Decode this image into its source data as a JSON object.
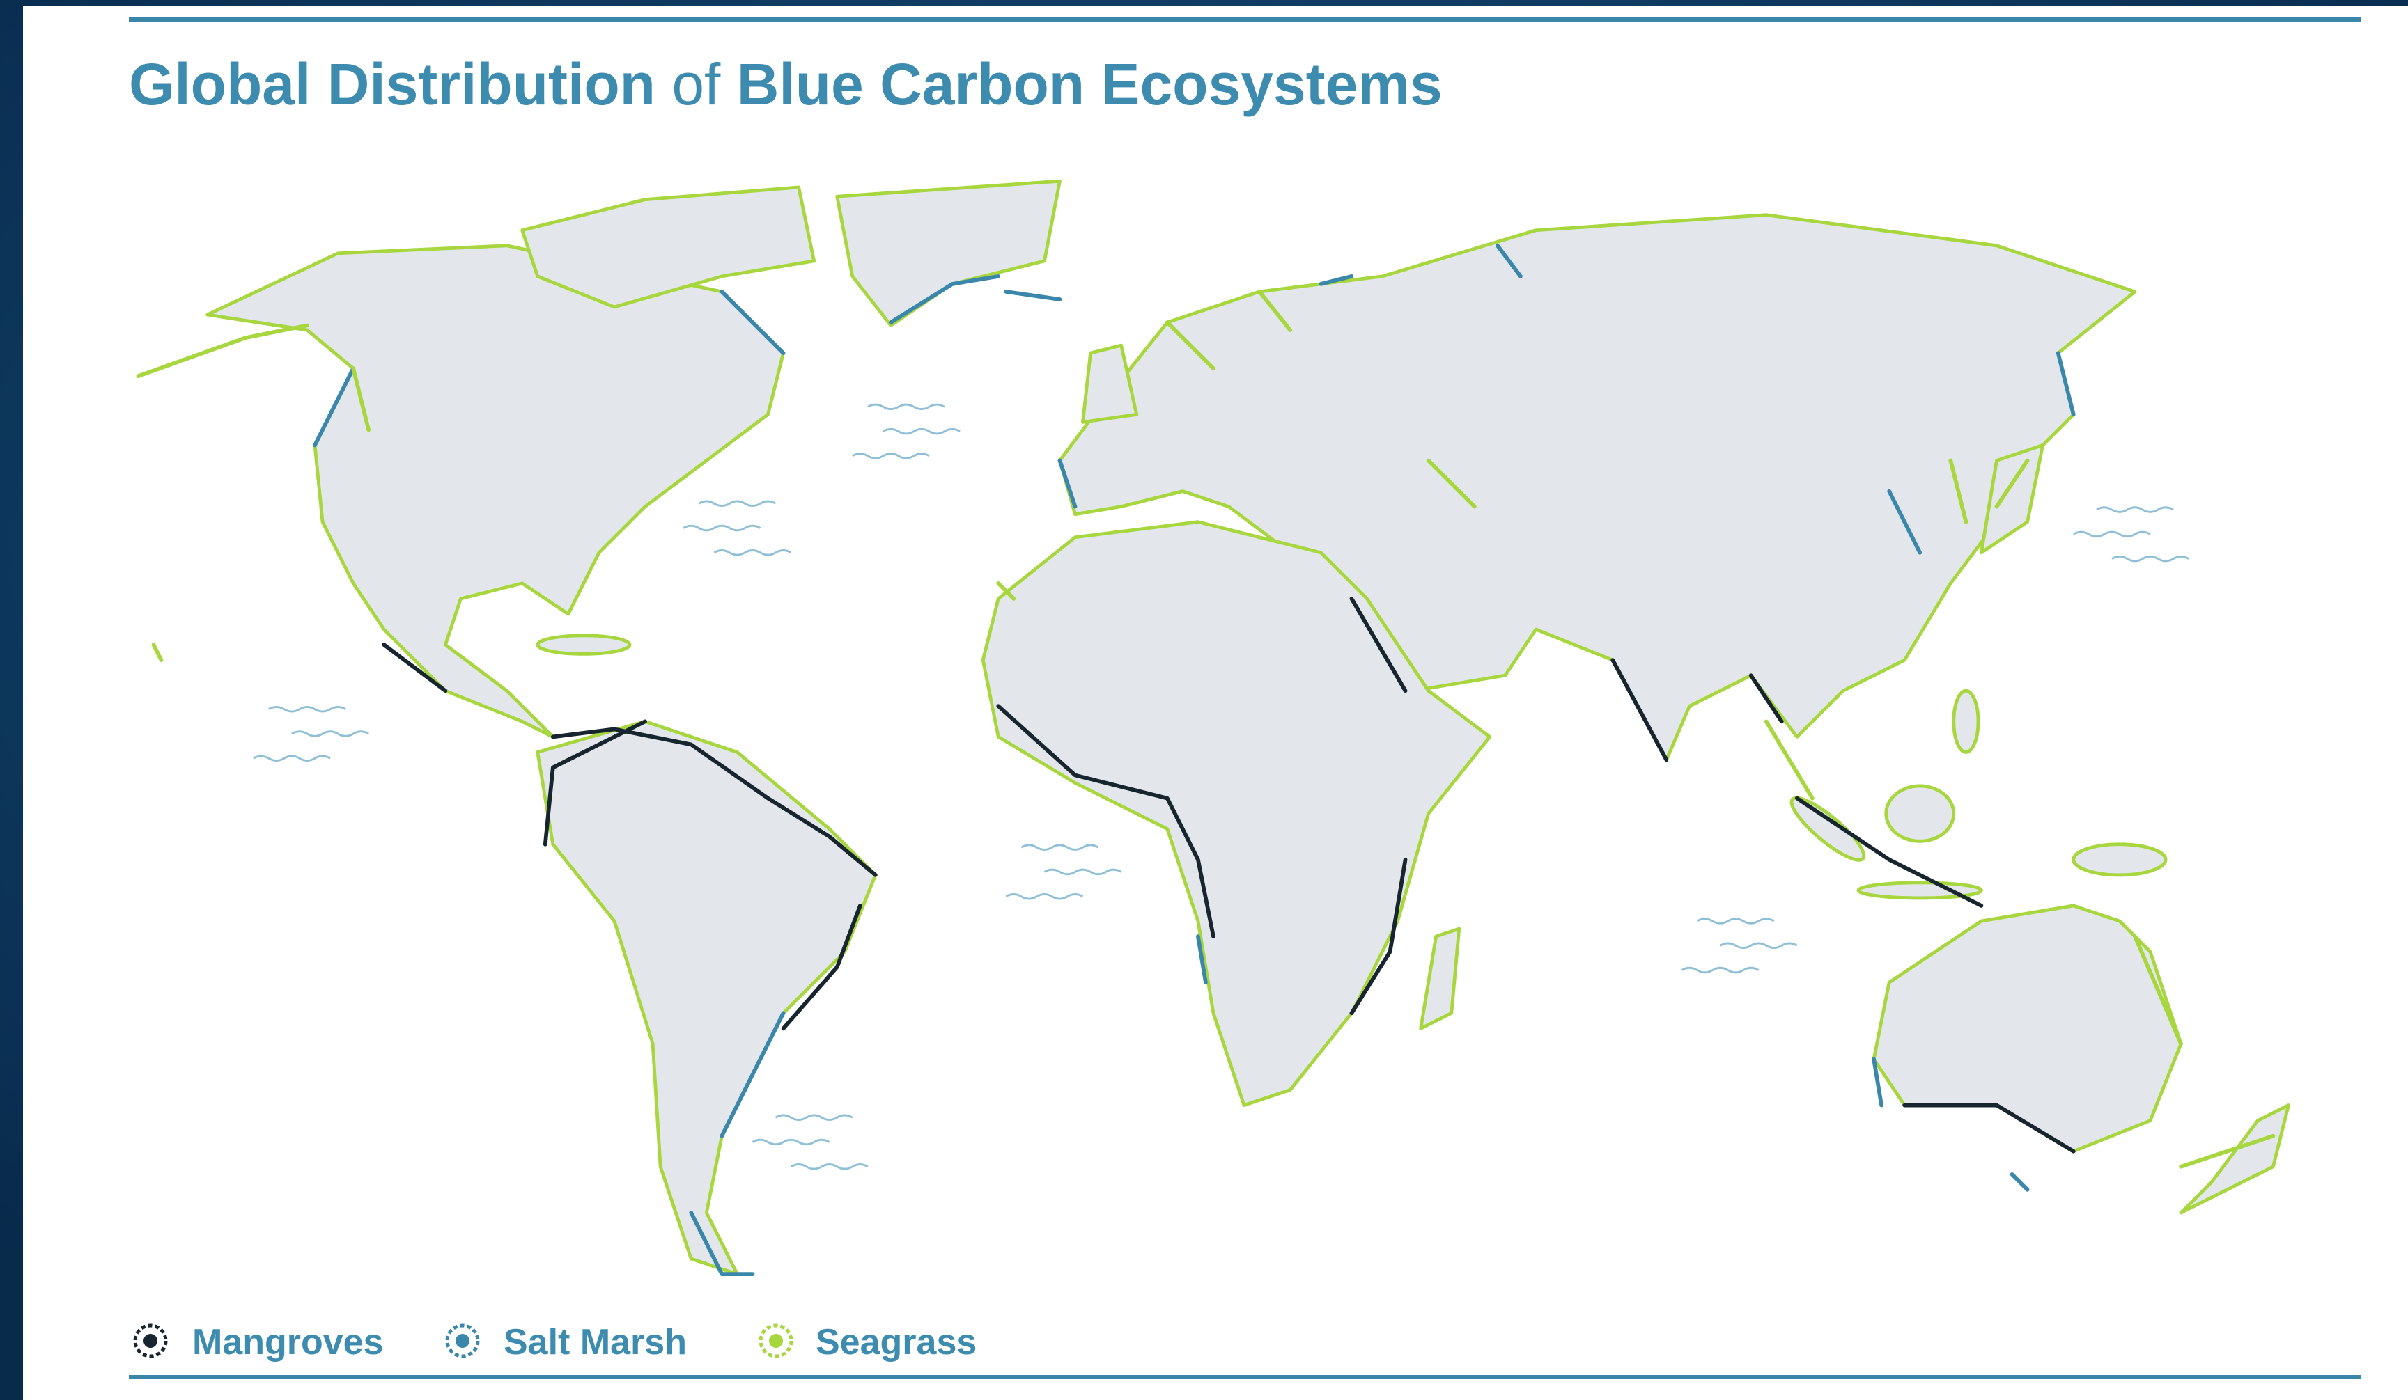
{
  "title": [
    "Global Distribution",
    "of",
    "Blue Carbon Ecosystems"
  ],
  "legend": [
    "Mangroves",
    "Salt Marsh",
    "Seagrass"
  ]
}
